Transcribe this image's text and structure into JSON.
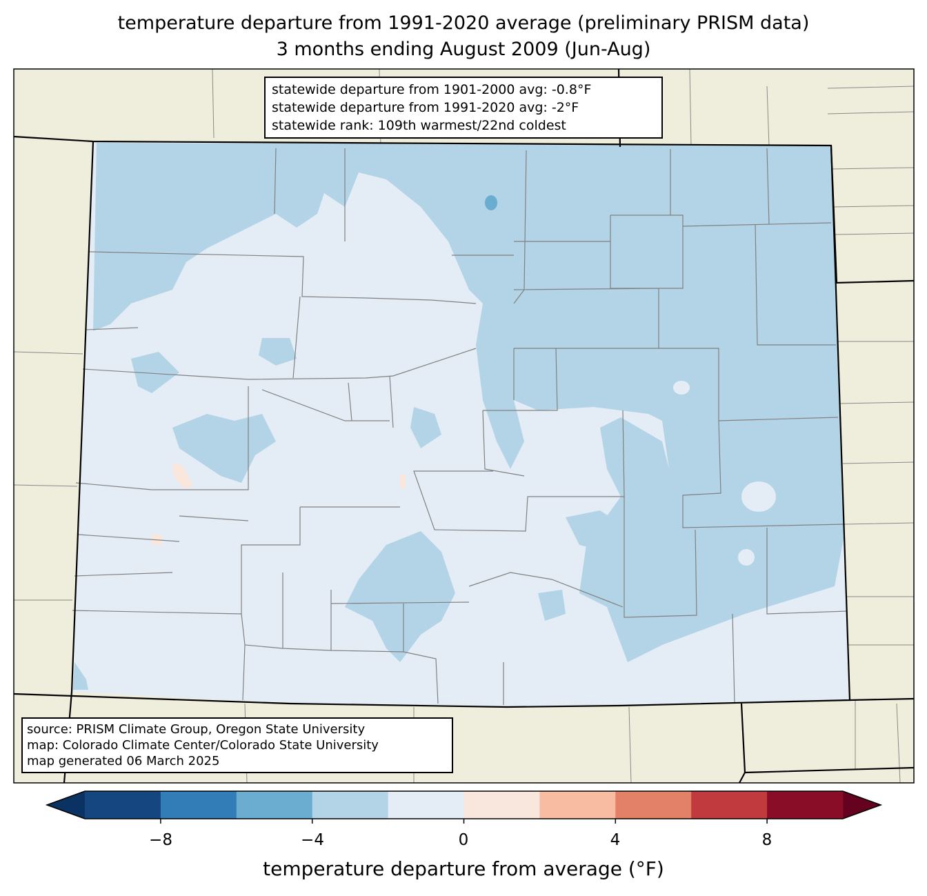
{
  "title": {
    "line1": "temperature departure from 1991-2020 average (preliminary PRISM data)",
    "line2": "3 months ending August 2009 (Jun-Aug)"
  },
  "stats": {
    "line1": "statewide departure from 1901-2000 avg: -0.8°F",
    "line2": "statewide departure from 1991-2020 avg: -2°F",
    "line3": "statewide rank: 109th warmest/22nd coldest"
  },
  "credits": {
    "line1": "source: PRISM Climate Group, Oregon State University",
    "line2": "map: Colorado Climate Center/Colorado State University",
    "line3": "map generated 06 March 2025"
  },
  "colorbar": {
    "label": "temperature departure from average (°F)",
    "ticks": [
      "−8",
      "−4",
      "0",
      "4",
      "8"
    ],
    "tick_values": [
      -8,
      -4,
      0,
      4,
      8
    ],
    "range": [
      -10,
      10
    ],
    "bins": [
      {
        "from": -10,
        "to": -8,
        "color": "#15467f"
      },
      {
        "from": -8,
        "to": -6,
        "color": "#327cb7"
      },
      {
        "from": -6,
        "to": -4,
        "color": "#6badd1"
      },
      {
        "from": -4,
        "to": -2,
        "color": "#b2d4e6"
      },
      {
        "from": -2,
        "to": 0,
        "color": "#e4edf5"
      },
      {
        "from": 0,
        "to": 2,
        "color": "#f9e7de"
      },
      {
        "from": 2,
        "to": 4,
        "color": "#f8bca3"
      },
      {
        "from": 4,
        "to": 6,
        "color": "#e38068"
      },
      {
        "from": 6,
        "to": 8,
        "color": "#c13a3d"
      },
      {
        "from": 8,
        "to": 10,
        "color": "#890d26"
      }
    ],
    "under_color": "#0a3263",
    "over_color": "#64021f"
  },
  "colors": {
    "land": "#efeedd",
    "state_fill": "#e4edf5",
    "cool": "#b2d4e6",
    "cooler": "#6badd1",
    "warm": "#f9e7de"
  }
}
